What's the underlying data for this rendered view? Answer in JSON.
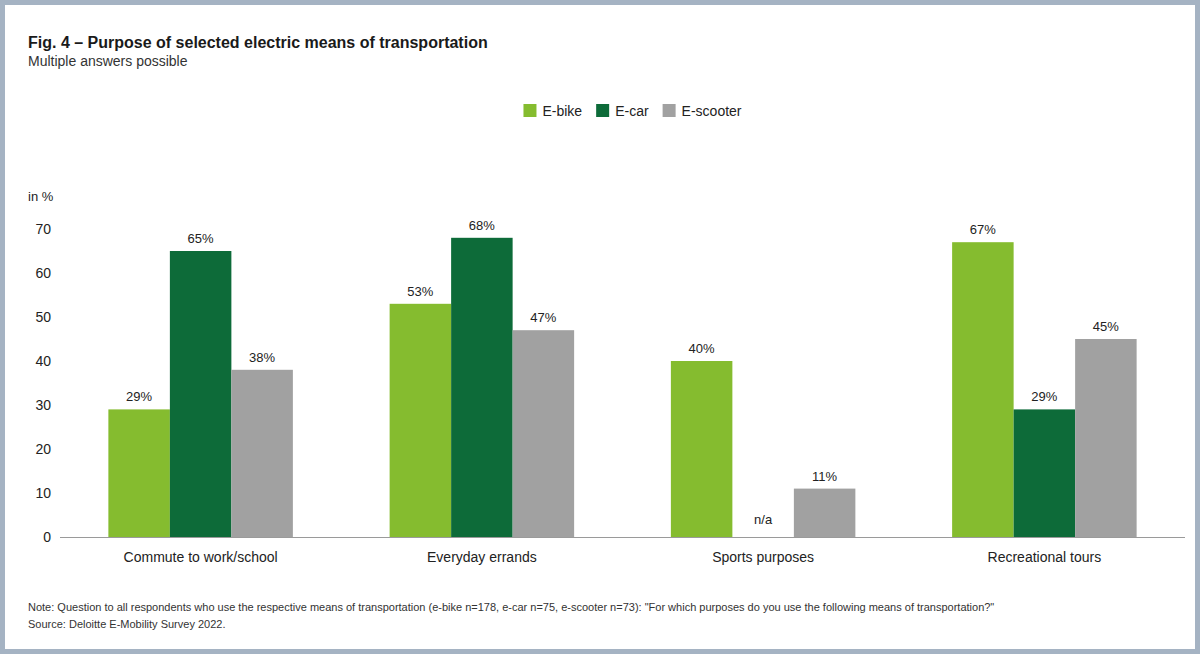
{
  "chart_data": {
    "type": "bar",
    "title": "Fig. 4 – Purpose of selected electric means of transportation",
    "subtitle": "Multiple answers possible",
    "ylabel": "in %",
    "categories": [
      "Commute to work/school",
      "Everyday errands",
      "Sports purposes",
      "Recreational tours"
    ],
    "series": [
      {
        "name": "E-bike",
        "color": "#85bc2f",
        "values": [
          29,
          53,
          40,
          67
        ],
        "value_labels": [
          "29%",
          "53%",
          "40%",
          "67%"
        ]
      },
      {
        "name": "E-car",
        "color": "#0d6b39",
        "values": [
          65,
          68,
          null,
          29
        ],
        "value_labels": [
          "65%",
          "68%",
          "n/a",
          "29%"
        ]
      },
      {
        "name": "E-scooter",
        "color": "#a1a1a1",
        "values": [
          38,
          47,
          11,
          45
        ],
        "value_labels": [
          "38%",
          "47%",
          "11%",
          "45%"
        ]
      }
    ],
    "ylim": [
      0,
      70
    ],
    "yticks": [
      0,
      10,
      20,
      30,
      40,
      50,
      60,
      70
    ],
    "grid": false,
    "legend": "top",
    "data_labels": true,
    "annotations": [
      "Note: Question to all respondents who use the respective means of transportation (e-bike n=178, e-car n=75, e-scooter n=73): \"For which purposes do you use the following means of transportation?\"",
      "Source: Deloitte E-Mobility Survey 2022."
    ]
  }
}
